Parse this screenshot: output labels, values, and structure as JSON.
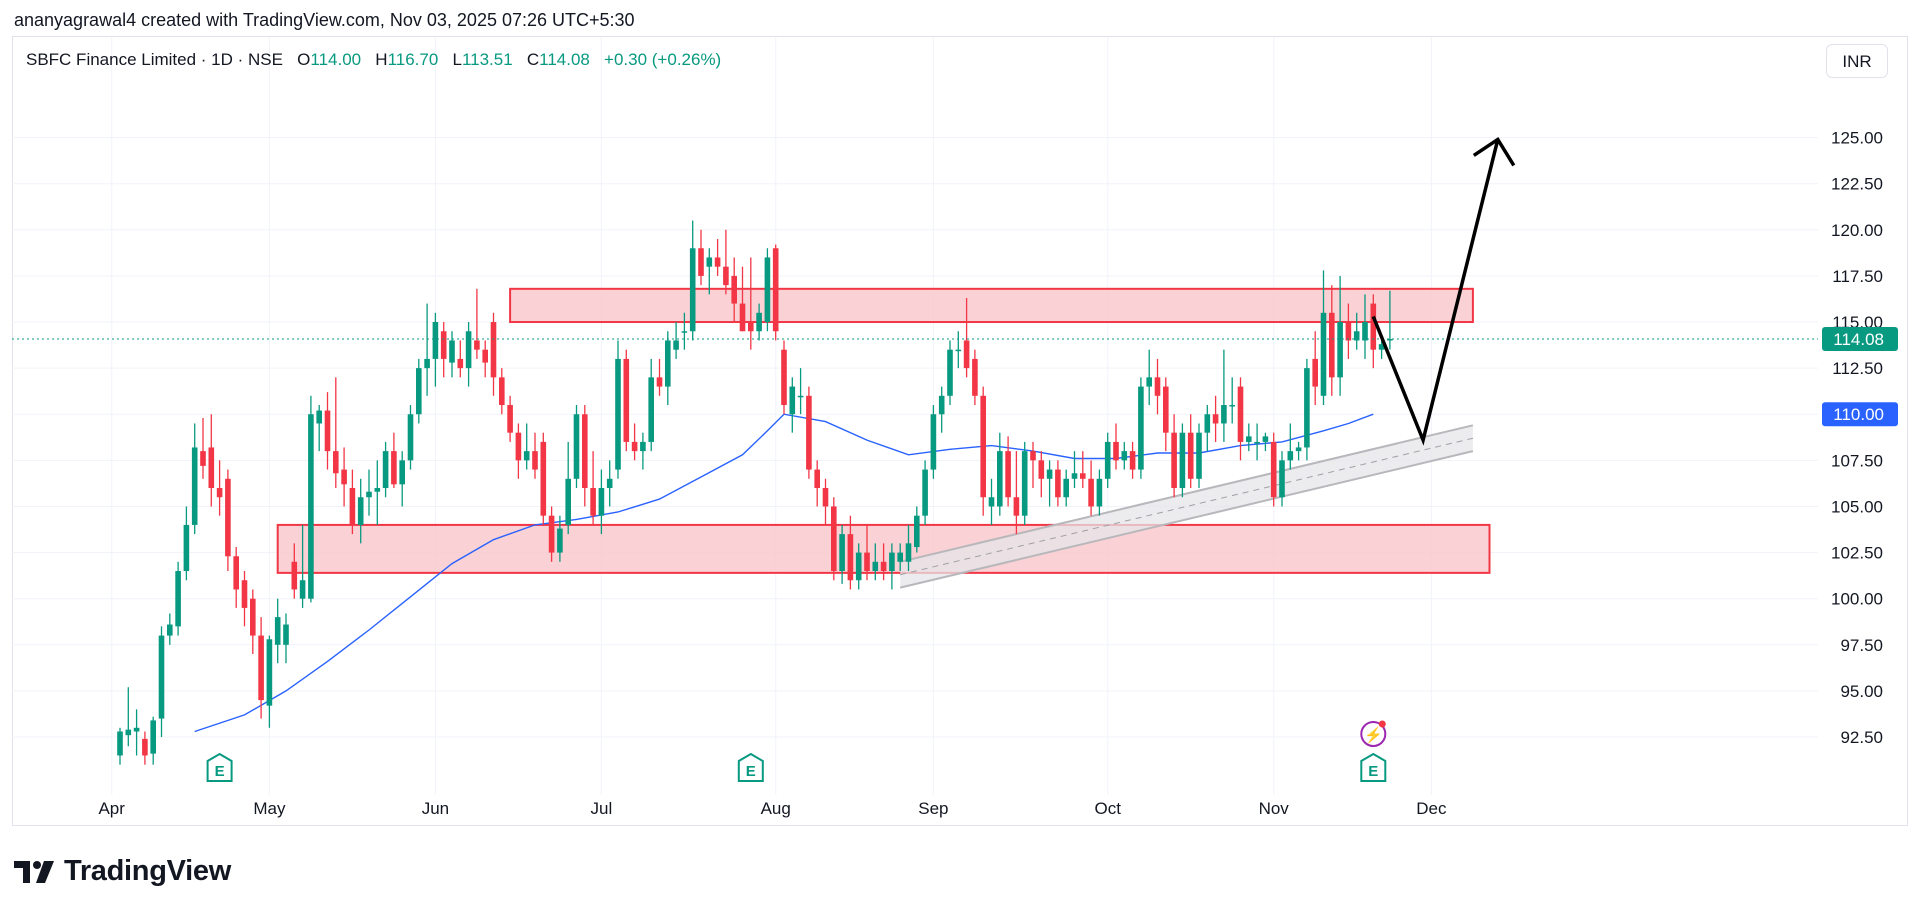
{
  "caption": "ananyagrawal4 created with TradingView.com, Nov 03, 2025 07:26 UTC+5:30",
  "legend": {
    "symbol": "SBFC Finance Limited · 1D · NSE",
    "o_label": "O",
    "o_value": "114.00",
    "h_label": "H",
    "h_value": "116.70",
    "l_label": "L",
    "l_value": "113.51",
    "c_label": "C",
    "c_value": "114.08",
    "change": "+0.30 (+0.26%)"
  },
  "currency": "INR",
  "brand": "TradingView",
  "colors": {
    "up": "#089981",
    "down": "#f23645",
    "ma": "#2962ff",
    "zone_fill": "#f9c9cd",
    "zone_border": "#f23645",
    "channel": "#b8b8bc",
    "grid": "#f0f3fa"
  },
  "chart_data": {
    "type": "candlestick",
    "y_tick_labels": [
      "125.00",
      "122.50",
      "120.00",
      "117.50",
      "115.00",
      "112.50",
      "110.00",
      "107.50",
      "105.00",
      "102.50",
      "100.00",
      "97.50",
      "95.00",
      "92.50"
    ],
    "x_tick_labels": [
      "Apr",
      "May",
      "Jun",
      "Jul",
      "Aug",
      "Sep",
      "Oct",
      "Nov",
      "Dec"
    ],
    "ylim": [
      91.2,
      127.2
    ],
    "last_price": {
      "label": "114.08",
      "value": 114.08,
      "color": "#089981"
    },
    "ma_price": {
      "label": "110.00",
      "value": 110.0,
      "color": "#2962ff"
    },
    "candles": [
      {
        "o": 91.5,
        "h": 93.0,
        "l": 91.0,
        "c": 92.8
      },
      {
        "o": 92.6,
        "h": 95.2,
        "l": 92.0,
        "c": 92.9
      },
      {
        "o": 92.8,
        "h": 94.0,
        "l": 91.5,
        "c": 93.0
      },
      {
        "o": 92.4,
        "h": 92.8,
        "l": 91.0,
        "c": 91.5
      },
      {
        "o": 91.6,
        "h": 93.6,
        "l": 91.0,
        "c": 93.4
      },
      {
        "o": 93.5,
        "h": 98.5,
        "l": 92.5,
        "c": 98.0
      },
      {
        "o": 98.0,
        "h": 99.2,
        "l": 97.5,
        "c": 98.6
      },
      {
        "o": 98.5,
        "h": 102.0,
        "l": 98.0,
        "c": 101.5
      },
      {
        "o": 101.5,
        "h": 105.0,
        "l": 101.0,
        "c": 104.0
      },
      {
        "o": 104.0,
        "h": 109.5,
        "l": 103.5,
        "c": 108.2
      },
      {
        "o": 108.0,
        "h": 109.8,
        "l": 106.5,
        "c": 107.2
      },
      {
        "o": 108.2,
        "h": 110.0,
        "l": 105.0,
        "c": 106.0
      },
      {
        "o": 106.0,
        "h": 107.5,
        "l": 104.5,
        "c": 105.5
      },
      {
        "o": 106.5,
        "h": 107.0,
        "l": 101.5,
        "c": 102.3
      },
      {
        "o": 102.3,
        "h": 102.8,
        "l": 99.5,
        "c": 100.5
      },
      {
        "o": 101.0,
        "h": 101.5,
        "l": 98.5,
        "c": 99.5
      },
      {
        "o": 100.0,
        "h": 100.5,
        "l": 97.0,
        "c": 98.0
      },
      {
        "o": 98.0,
        "h": 99.0,
        "l": 93.5,
        "c": 94.5
      },
      {
        "o": 94.2,
        "h": 98.0,
        "l": 93.0,
        "c": 97.8
      },
      {
        "o": 97.5,
        "h": 100.0,
        "l": 96.5,
        "c": 99.0
      },
      {
        "o": 97.5,
        "h": 99.2,
        "l": 96.5,
        "c": 98.6
      },
      {
        "o": 102.0,
        "h": 103.0,
        "l": 100.0,
        "c": 100.5
      },
      {
        "o": 100.0,
        "h": 104.0,
        "l": 99.5,
        "c": 101.0
      },
      {
        "o": 100.0,
        "h": 111.0,
        "l": 99.8,
        "c": 110.0
      },
      {
        "o": 109.5,
        "h": 110.5,
        "l": 108.0,
        "c": 110.2
      },
      {
        "o": 110.2,
        "h": 111.2,
        "l": 107.0,
        "c": 108.0
      },
      {
        "o": 108.0,
        "h": 112.0,
        "l": 106.0,
        "c": 106.8
      },
      {
        "o": 107.0,
        "h": 108.2,
        "l": 105.0,
        "c": 106.2
      },
      {
        "o": 106.0,
        "h": 107.0,
        "l": 103.5,
        "c": 104.0
      },
      {
        "o": 104.0,
        "h": 106.5,
        "l": 103.0,
        "c": 105.5
      },
      {
        "o": 105.5,
        "h": 107.0,
        "l": 104.5,
        "c": 105.8
      },
      {
        "o": 105.8,
        "h": 107.5,
        "l": 104.0,
        "c": 106.0
      },
      {
        "o": 106.0,
        "h": 108.5,
        "l": 105.5,
        "c": 108.0
      },
      {
        "o": 108.0,
        "h": 109.0,
        "l": 106.0,
        "c": 106.2
      },
      {
        "o": 106.2,
        "h": 108.0,
        "l": 105.0,
        "c": 107.5
      },
      {
        "o": 107.5,
        "h": 110.5,
        "l": 107.0,
        "c": 110.0
      },
      {
        "o": 110.0,
        "h": 113.0,
        "l": 109.5,
        "c": 112.5
      },
      {
        "o": 112.5,
        "h": 116.0,
        "l": 111.0,
        "c": 113.0
      },
      {
        "o": 113.0,
        "h": 115.5,
        "l": 111.5,
        "c": 115.0
      },
      {
        "o": 114.5,
        "h": 115.0,
        "l": 112.0,
        "c": 113.0
      },
      {
        "o": 112.8,
        "h": 114.5,
        "l": 112.0,
        "c": 114.0
      },
      {
        "o": 113.0,
        "h": 114.0,
        "l": 112.0,
        "c": 112.5
      },
      {
        "o": 112.5,
        "h": 115.0,
        "l": 111.5,
        "c": 114.5
      },
      {
        "o": 114.0,
        "h": 116.8,
        "l": 113.0,
        "c": 113.5
      },
      {
        "o": 113.5,
        "h": 114.0,
        "l": 112.0,
        "c": 112.8
      },
      {
        "o": 115.0,
        "h": 115.5,
        "l": 111.0,
        "c": 112.0
      },
      {
        "o": 112.0,
        "h": 112.5,
        "l": 110.0,
        "c": 110.5
      },
      {
        "o": 110.5,
        "h": 111.0,
        "l": 108.5,
        "c": 109.0
      },
      {
        "o": 109.0,
        "h": 109.5,
        "l": 106.5,
        "c": 107.5
      },
      {
        "o": 107.5,
        "h": 109.5,
        "l": 107.0,
        "c": 108.0
      },
      {
        "o": 108.0,
        "h": 109.0,
        "l": 106.5,
        "c": 107.0
      },
      {
        "o": 108.5,
        "h": 109.0,
        "l": 104.0,
        "c": 104.5
      },
      {
        "o": 104.5,
        "h": 105.0,
        "l": 102.0,
        "c": 102.5
      },
      {
        "o": 102.5,
        "h": 104.5,
        "l": 102.0,
        "c": 103.8
      },
      {
        "o": 104.0,
        "h": 108.5,
        "l": 103.5,
        "c": 106.5
      },
      {
        "o": 106.5,
        "h": 110.5,
        "l": 106.0,
        "c": 110.0
      },
      {
        "o": 110.0,
        "h": 110.5,
        "l": 105.0,
        "c": 106.0
      },
      {
        "o": 106.0,
        "h": 108.0,
        "l": 104.0,
        "c": 104.5
      },
      {
        "o": 104.5,
        "h": 107.0,
        "l": 103.5,
        "c": 106.0
      },
      {
        "o": 106.0,
        "h": 107.5,
        "l": 105.0,
        "c": 106.5
      },
      {
        "o": 107.0,
        "h": 114.0,
        "l": 106.5,
        "c": 113.0
      },
      {
        "o": 113.0,
        "h": 113.5,
        "l": 108.0,
        "c": 108.5
      },
      {
        "o": 108.5,
        "h": 109.5,
        "l": 107.5,
        "c": 108.0
      },
      {
        "o": 108.0,
        "h": 109.0,
        "l": 107.0,
        "c": 108.5
      },
      {
        "o": 108.5,
        "h": 113.0,
        "l": 108.0,
        "c": 112.0
      },
      {
        "o": 112.0,
        "h": 113.0,
        "l": 111.0,
        "c": 111.5
      },
      {
        "o": 111.5,
        "h": 114.5,
        "l": 110.5,
        "c": 114.0
      },
      {
        "o": 113.5,
        "h": 115.0,
        "l": 113.0,
        "c": 114.0
      },
      {
        "o": 114.5,
        "h": 115.5,
        "l": 113.5,
        "c": 114.5
      },
      {
        "o": 114.5,
        "h": 120.5,
        "l": 114.0,
        "c": 119.0
      },
      {
        "o": 119.0,
        "h": 120.0,
        "l": 117.0,
        "c": 117.5
      },
      {
        "o": 118.0,
        "h": 119.0,
        "l": 116.5,
        "c": 118.5
      },
      {
        "o": 118.5,
        "h": 119.5,
        "l": 117.5,
        "c": 118.0
      },
      {
        "o": 118.0,
        "h": 120.0,
        "l": 116.5,
        "c": 117.0
      },
      {
        "o": 117.5,
        "h": 118.5,
        "l": 115.0,
        "c": 116.0
      },
      {
        "o": 116.0,
        "h": 118.0,
        "l": 114.5,
        "c": 114.5
      },
      {
        "o": 115.0,
        "h": 118.5,
        "l": 113.5,
        "c": 114.5
      },
      {
        "o": 114.5,
        "h": 116.0,
        "l": 114.0,
        "c": 115.5
      },
      {
        "o": 115.0,
        "h": 119.0,
        "l": 114.5,
        "c": 118.5
      },
      {
        "o": 119.0,
        "h": 119.2,
        "l": 114.0,
        "c": 114.5
      },
      {
        "o": 113.5,
        "h": 114.0,
        "l": 110.0,
        "c": 110.5
      },
      {
        "o": 110.0,
        "h": 112.0,
        "l": 109.0,
        "c": 111.5
      },
      {
        "o": 111.0,
        "h": 112.5,
        "l": 110.0,
        "c": 111.0
      },
      {
        "o": 111.0,
        "h": 111.5,
        "l": 106.5,
        "c": 107.0
      },
      {
        "o": 107.0,
        "h": 107.5,
        "l": 105.0,
        "c": 106.0
      },
      {
        "o": 106.0,
        "h": 106.5,
        "l": 104.0,
        "c": 105.0
      },
      {
        "o": 105.0,
        "h": 105.5,
        "l": 101.0,
        "c": 101.5
      },
      {
        "o": 101.5,
        "h": 104.0,
        "l": 100.8,
        "c": 103.5
      },
      {
        "o": 103.5,
        "h": 104.5,
        "l": 100.5,
        "c": 101.0
      },
      {
        "o": 101.0,
        "h": 103.0,
        "l": 100.5,
        "c": 102.5
      },
      {
        "o": 102.5,
        "h": 104.0,
        "l": 101.0,
        "c": 101.5
      },
      {
        "o": 101.5,
        "h": 103.0,
        "l": 101.0,
        "c": 102.0
      },
      {
        "o": 102.0,
        "h": 103.0,
        "l": 101.0,
        "c": 101.5
      },
      {
        "o": 101.5,
        "h": 103.0,
        "l": 100.5,
        "c": 102.5
      },
      {
        "o": 102.0,
        "h": 103.0,
        "l": 101.5,
        "c": 102.5
      },
      {
        "o": 102.0,
        "h": 104.0,
        "l": 101.5,
        "c": 103.0
      },
      {
        "o": 102.8,
        "h": 105.0,
        "l": 102.5,
        "c": 104.5
      },
      {
        "o": 104.5,
        "h": 107.5,
        "l": 104.0,
        "c": 107.0
      },
      {
        "o": 107.0,
        "h": 110.5,
        "l": 106.5,
        "c": 110.0
      },
      {
        "o": 110.0,
        "h": 111.5,
        "l": 109.0,
        "c": 111.0
      },
      {
        "o": 111.0,
        "h": 114.0,
        "l": 110.5,
        "c": 113.5
      },
      {
        "o": 113.5,
        "h": 114.5,
        "l": 112.5,
        "c": 113.5
      },
      {
        "o": 114.0,
        "h": 116.3,
        "l": 112.0,
        "c": 112.5
      },
      {
        "o": 113.0,
        "h": 113.5,
        "l": 110.5,
        "c": 111.0
      },
      {
        "o": 111.0,
        "h": 111.5,
        "l": 104.5,
        "c": 105.5
      },
      {
        "o": 105.0,
        "h": 106.5,
        "l": 104.0,
        "c": 105.5
      },
      {
        "o": 105.0,
        "h": 109.0,
        "l": 104.5,
        "c": 108.0
      },
      {
        "o": 108.0,
        "h": 108.8,
        "l": 105.0,
        "c": 105.5
      },
      {
        "o": 105.5,
        "h": 108.0,
        "l": 103.5,
        "c": 104.5
      },
      {
        "o": 104.5,
        "h": 108.5,
        "l": 104.0,
        "c": 108.0
      },
      {
        "o": 108.0,
        "h": 108.5,
        "l": 106.0,
        "c": 107.5
      },
      {
        "o": 107.5,
        "h": 108.0,
        "l": 105.5,
        "c": 106.5
      },
      {
        "o": 106.5,
        "h": 107.5,
        "l": 105.0,
        "c": 107.0
      },
      {
        "o": 107.0,
        "h": 107.5,
        "l": 105.0,
        "c": 105.5
      },
      {
        "o": 105.5,
        "h": 107.0,
        "l": 105.0,
        "c": 106.5
      },
      {
        "o": 106.5,
        "h": 108.0,
        "l": 106.0,
        "c": 106.8
      },
      {
        "o": 106.8,
        "h": 108.0,
        "l": 106.0,
        "c": 106.5
      },
      {
        "o": 106.5,
        "h": 107.5,
        "l": 104.5,
        "c": 105.0
      },
      {
        "o": 105.0,
        "h": 107.0,
        "l": 104.5,
        "c": 106.5
      },
      {
        "o": 106.5,
        "h": 109.0,
        "l": 106.0,
        "c": 108.5
      },
      {
        "o": 108.5,
        "h": 109.5,
        "l": 107.0,
        "c": 107.5
      },
      {
        "o": 107.5,
        "h": 108.5,
        "l": 107.0,
        "c": 108.0
      },
      {
        "o": 108.0,
        "h": 108.5,
        "l": 106.5,
        "c": 107.0
      },
      {
        "o": 107.0,
        "h": 112.0,
        "l": 106.5,
        "c": 111.5
      },
      {
        "o": 111.5,
        "h": 113.5,
        "l": 110.5,
        "c": 112.0
      },
      {
        "o": 112.0,
        "h": 113.0,
        "l": 110.0,
        "c": 111.0
      },
      {
        "o": 111.5,
        "h": 112.0,
        "l": 108.0,
        "c": 109.0
      },
      {
        "o": 109.0,
        "h": 110.0,
        "l": 105.5,
        "c": 106.0
      },
      {
        "o": 106.0,
        "h": 109.5,
        "l": 105.5,
        "c": 109.0
      },
      {
        "o": 109.0,
        "h": 110.0,
        "l": 106.0,
        "c": 106.5
      },
      {
        "o": 106.5,
        "h": 109.5,
        "l": 106.0,
        "c": 109.0
      },
      {
        "o": 109.0,
        "h": 110.5,
        "l": 108.0,
        "c": 110.0
      },
      {
        "o": 110.0,
        "h": 111.0,
        "l": 108.5,
        "c": 109.5
      },
      {
        "o": 109.5,
        "h": 113.5,
        "l": 108.5,
        "c": 110.5
      },
      {
        "o": 110.5,
        "h": 112.0,
        "l": 109.5,
        "c": 110.5
      },
      {
        "o": 111.5,
        "h": 112.0,
        "l": 107.5,
        "c": 108.5
      },
      {
        "o": 108.5,
        "h": 109.5,
        "l": 108.0,
        "c": 108.8
      },
      {
        "o": 108.5,
        "h": 109.5,
        "l": 107.5,
        "c": 108.5
      },
      {
        "o": 108.5,
        "h": 109.0,
        "l": 108.0,
        "c": 108.8
      },
      {
        "o": 108.5,
        "h": 109.0,
        "l": 105.0,
        "c": 105.5
      },
      {
        "o": 105.5,
        "h": 108.0,
        "l": 105.0,
        "c": 107.5
      },
      {
        "o": 107.5,
        "h": 109.5,
        "l": 107.0,
        "c": 108.0
      },
      {
        "o": 108.0,
        "h": 108.5,
        "l": 107.5,
        "c": 108.2
      },
      {
        "o": 108.2,
        "h": 113.0,
        "l": 107.5,
        "c": 112.5
      },
      {
        "o": 113.0,
        "h": 114.5,
        "l": 110.5,
        "c": 111.5
      },
      {
        "o": 111.0,
        "h": 117.8,
        "l": 110.5,
        "c": 115.5
      },
      {
        "o": 115.5,
        "h": 117.0,
        "l": 111.0,
        "c": 112.0
      },
      {
        "o": 112.0,
        "h": 117.5,
        "l": 111.0,
        "c": 115.0
      },
      {
        "o": 115.0,
        "h": 116.0,
        "l": 113.0,
        "c": 114.0
      },
      {
        "o": 114.0,
        "h": 115.5,
        "l": 113.5,
        "c": 114.5
      },
      {
        "o": 114.0,
        "h": 116.5,
        "l": 113.0,
        "c": 115.0
      },
      {
        "o": 116.0,
        "h": 116.5,
        "l": 112.5,
        "c": 113.5
      },
      {
        "o": 113.5,
        "h": 114.0,
        "l": 113.0,
        "c": 113.8
      },
      {
        "o": 114.0,
        "h": 116.7,
        "l": 113.51,
        "c": 114.08
      }
    ],
    "moving_average": [
      {
        "i": 9,
        "v": 92.8
      },
      {
        "i": 15,
        "v": 93.7
      },
      {
        "i": 20,
        "v": 95.0
      },
      {
        "i": 25,
        "v": 96.6
      },
      {
        "i": 30,
        "v": 98.3
      },
      {
        "i": 35,
        "v": 100.1
      },
      {
        "i": 40,
        "v": 101.9
      },
      {
        "i": 45,
        "v": 103.2
      },
      {
        "i": 50,
        "v": 104.0
      },
      {
        "i": 55,
        "v": 104.3
      },
      {
        "i": 60,
        "v": 104.7
      },
      {
        "i": 65,
        "v": 105.4
      },
      {
        "i": 70,
        "v": 106.6
      },
      {
        "i": 75,
        "v": 107.8
      },
      {
        "i": 78,
        "v": 109.1
      },
      {
        "i": 80,
        "v": 110.0
      },
      {
        "i": 85,
        "v": 109.6
      },
      {
        "i": 90,
        "v": 108.6
      },
      {
        "i": 95,
        "v": 107.8
      },
      {
        "i": 100,
        "v": 108.1
      },
      {
        "i": 105,
        "v": 108.3
      },
      {
        "i": 110,
        "v": 108.0
      },
      {
        "i": 115,
        "v": 107.6
      },
      {
        "i": 120,
        "v": 107.6
      },
      {
        "i": 125,
        "v": 107.9
      },
      {
        "i": 130,
        "v": 107.9
      },
      {
        "i": 135,
        "v": 108.3
      },
      {
        "i": 140,
        "v": 108.5
      },
      {
        "i": 145,
        "v": 109.1
      },
      {
        "i": 148,
        "v": 109.5
      },
      {
        "i": 151,
        "v": 110.0
      }
    ],
    "zones": [
      {
        "from_i": 47,
        "to_i": 163,
        "top": 116.8,
        "bottom": 115.0
      },
      {
        "from_i": 19,
        "to_i": 165,
        "top": 104.0,
        "bottom": 101.4
      }
    ],
    "channel": {
      "from_i": 94,
      "to_i": 163,
      "upper": [
        102.0,
        109.4
      ],
      "middle": [
        101.3,
        108.7
      ],
      "lower": [
        100.6,
        108.0
      ]
    },
    "projection": [
      {
        "i": 151,
        "v": 115.3
      },
      {
        "i": 157,
        "v": 108.6
      },
      {
        "i": 166,
        "v": 124.9
      }
    ],
    "earnings_markers": [
      {
        "i": 12,
        "label": "E"
      },
      {
        "i": 76,
        "label": "E"
      },
      {
        "i": 151,
        "label": "E"
      }
    ],
    "dividend_marker": {
      "i": 151,
      "label": "⚡"
    }
  }
}
